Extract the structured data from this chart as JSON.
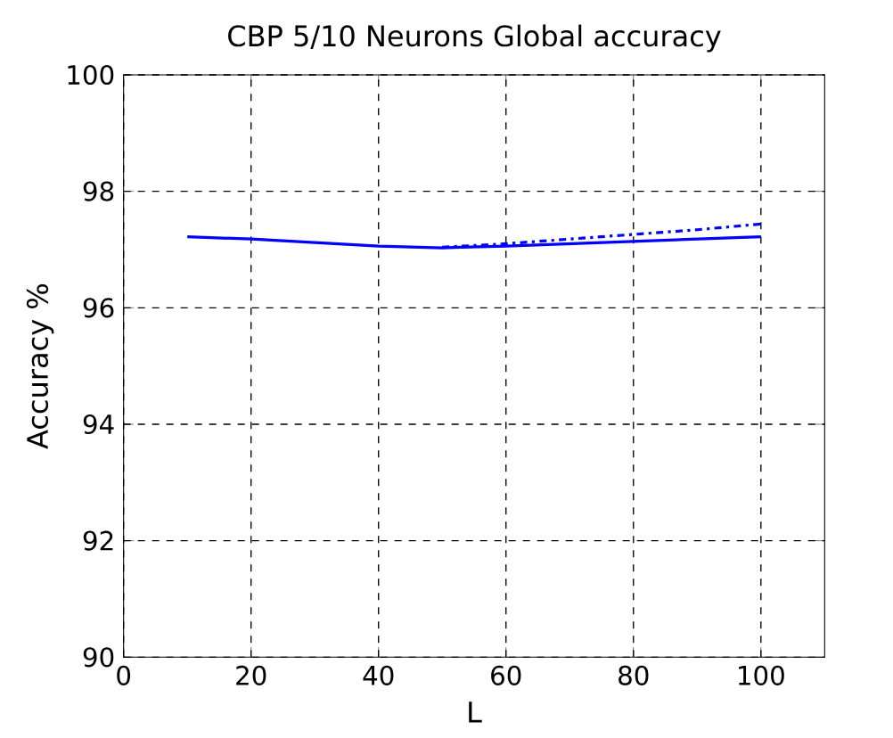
{
  "chart_data": {
    "type": "line",
    "title": "CBP 5/10 Neurons Global accuracy",
    "xlabel": "L",
    "ylabel": "Accuracy %",
    "xlim": [
      0,
      110
    ],
    "ylim": [
      90,
      100
    ],
    "xticks": [
      0,
      20,
      40,
      60,
      80,
      100
    ],
    "yticks": [
      90,
      92,
      94,
      96,
      98,
      100
    ],
    "grid": true,
    "series": [
      {
        "color": "#0000ff",
        "line_style": "solid",
        "x": [
          10,
          20,
          30,
          40,
          50,
          60,
          70,
          80,
          90,
          100
        ],
        "values": [
          97.22,
          97.18,
          97.12,
          97.06,
          97.03,
          97.06,
          97.1,
          97.14,
          97.18,
          97.22
        ]
      },
      {
        "color": "#0000ff",
        "line_style": "dashdot",
        "x": [
          50,
          60,
          70,
          80,
          90,
          100
        ],
        "values": [
          97.04,
          97.1,
          97.18,
          97.26,
          97.34,
          97.44
        ]
      }
    ]
  }
}
